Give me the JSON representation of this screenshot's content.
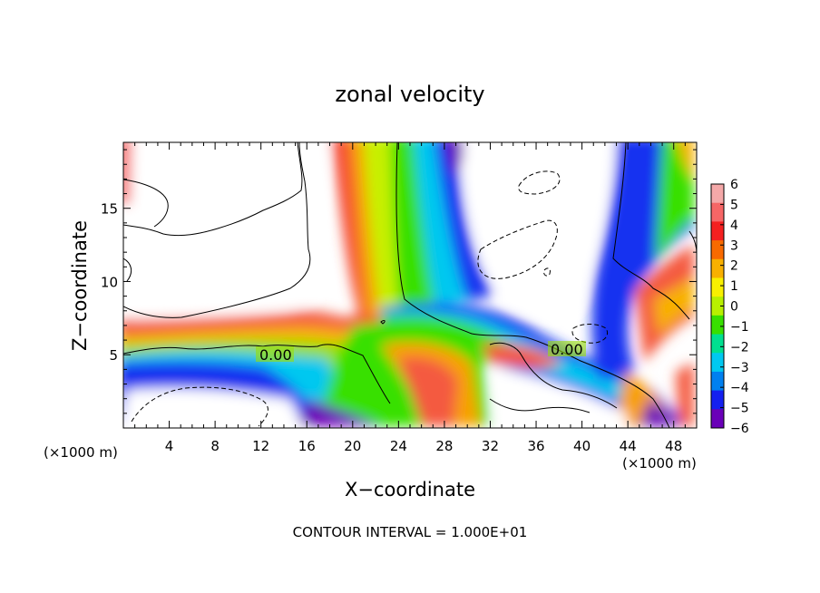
{
  "chart_data": {
    "type": "heatmap",
    "title": "zonal velocity",
    "xlabel": "X−coordinate",
    "ylabel": "Z−coordinate",
    "x_unit": "(×1000 m)",
    "y_unit": "(×1000 m)",
    "xlim": [
      0,
      50
    ],
    "ylim": [
      0,
      19.5
    ],
    "x_ticks": [
      4,
      8,
      12,
      16,
      20,
      24,
      28,
      32,
      36,
      40,
      44,
      48
    ],
    "y_ticks": [
      5,
      10,
      15
    ],
    "colorbar": {
      "min": -6,
      "max": 6,
      "ticks": [
        6,
        5,
        4,
        3,
        2,
        1,
        0,
        -1,
        -2,
        -3,
        -4,
        -5,
        -6
      ],
      "tick_labels": [
        "6",
        "5",
        "4",
        "3",
        "2",
        "1",
        "0",
        "−1",
        "−2",
        "−3",
        "−4",
        "−5",
        "−6"
      ],
      "colors": [
        "#f4a8a8",
        "#f66666",
        "#f42020",
        "#f86a00",
        "#f8b000",
        "#f8f000",
        "#b8f000",
        "#38e000",
        "#00e090",
        "#00c8f0",
        "#0080f0",
        "#1420f0",
        "#6a00b8"
      ]
    },
    "contour_labels": [
      {
        "text": "0.00",
        "x": 13.2,
        "y": 5.0
      },
      {
        "text": "0.00",
        "x": 39.0,
        "y": 5.4
      }
    ],
    "footer": "CONTOUR INTERVAL = 1.000E+01"
  }
}
